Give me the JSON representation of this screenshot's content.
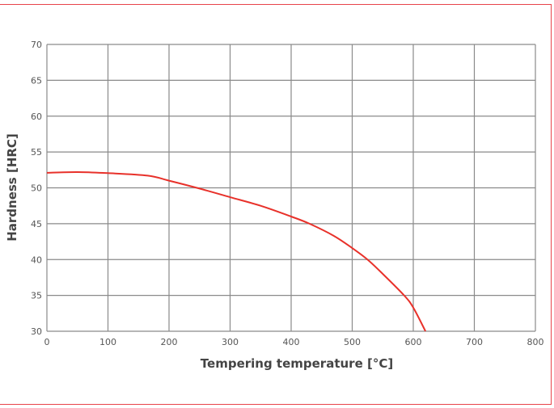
{
  "chart_data": {
    "type": "line",
    "title": "",
    "xlabel": "Tempering temperature [°C]",
    "ylabel": "Hardness [HRC]",
    "xlim": [
      0,
      800
    ],
    "ylim": [
      30,
      70
    ],
    "xticks": [
      0,
      100,
      200,
      300,
      400,
      500,
      600,
      700,
      800
    ],
    "yticks": [
      30,
      35,
      40,
      45,
      50,
      55,
      60,
      65,
      70
    ],
    "grid": true,
    "series": [
      {
        "name": "Hardness",
        "color": "#e8312a",
        "x": [
          0,
          50,
          100,
          165,
          200,
          250,
          300,
          350,
          400,
          430,
          470,
          500,
          525,
          550,
          585,
          600,
          620
        ],
        "y": [
          52.1,
          52.2,
          52.05,
          51.7,
          51.0,
          49.9,
          48.7,
          47.5,
          46.0,
          45.0,
          43.3,
          41.6,
          40.0,
          38.0,
          35.0,
          33.3,
          30.0
        ]
      }
    ]
  }
}
